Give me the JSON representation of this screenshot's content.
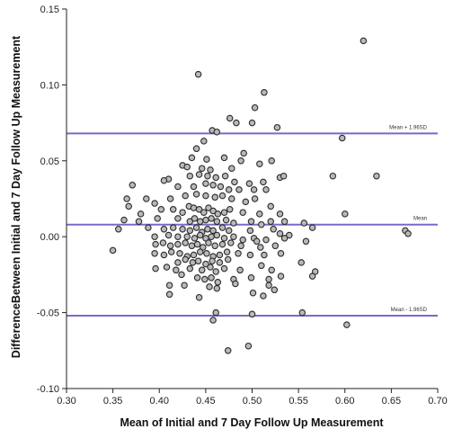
{
  "chart_data": {
    "type": "scatter",
    "title": "",
    "xlabel": "Mean of Initial and 7 Day Follow Up Measurement",
    "ylabel": "DifferenceBetween Initial and 7 Day Follow Up Measurement",
    "xlim": [
      0.3,
      0.7
    ],
    "ylim": [
      -0.1,
      0.15
    ],
    "x_ticks": [
      "0.30",
      "0.35",
      "0.40",
      "0.45",
      "0.50",
      "0.55",
      "0.60",
      "0.65",
      "0.70"
    ],
    "y_ticks": [
      "0.15",
      "0.10",
      "0.05",
      "0.00",
      "-0.05",
      "-0.10"
    ],
    "grid": false,
    "reference_lines": [
      {
        "label": "Mean + 1.96SD",
        "y": 0.068,
        "color": "#7b68c9"
      },
      {
        "label": "Mean",
        "y": 0.008,
        "color": "#7b68c9"
      },
      {
        "label": "Mean - 1.96SD",
        "y": -0.052,
        "color": "#7b68c9"
      }
    ],
    "point_style": {
      "fill": "#b9b9b9",
      "stroke": "#2a2a2a"
    },
    "points": [
      [
        0.62,
        0.129
      ],
      [
        0.442,
        0.107
      ],
      [
        0.513,
        0.095
      ],
      [
        0.503,
        0.085
      ],
      [
        0.476,
        0.078
      ],
      [
        0.483,
        0.075
      ],
      [
        0.5,
        0.075
      ],
      [
        0.457,
        0.07
      ],
      [
        0.462,
        0.069
      ],
      [
        0.527,
        0.072
      ],
      [
        0.597,
        0.065
      ],
      [
        0.448,
        0.063
      ],
      [
        0.44,
        0.058
      ],
      [
        0.435,
        0.052
      ],
      [
        0.451,
        0.051
      ],
      [
        0.47,
        0.052
      ],
      [
        0.491,
        0.055
      ],
      [
        0.508,
        0.048
      ],
      [
        0.425,
        0.047
      ],
      [
        0.43,
        0.046
      ],
      [
        0.446,
        0.045
      ],
      [
        0.455,
        0.044
      ],
      [
        0.478,
        0.045
      ],
      [
        0.488,
        0.05
      ],
      [
        0.521,
        0.05
      ],
      [
        0.587,
        0.04
      ],
      [
        0.634,
        0.04
      ],
      [
        0.41,
        0.038
      ],
      [
        0.433,
        0.04
      ],
      [
        0.443,
        0.041
      ],
      [
        0.452,
        0.04
      ],
      [
        0.461,
        0.039
      ],
      [
        0.471,
        0.04
      ],
      [
        0.481,
        0.036
      ],
      [
        0.497,
        0.035
      ],
      [
        0.512,
        0.036
      ],
      [
        0.53,
        0.039
      ],
      [
        0.534,
        0.04
      ],
      [
        0.371,
        0.034
      ],
      [
        0.405,
        0.037
      ],
      [
        0.42,
        0.033
      ],
      [
        0.437,
        0.033
      ],
      [
        0.45,
        0.035
      ],
      [
        0.458,
        0.034
      ],
      [
        0.466,
        0.033
      ],
      [
        0.475,
        0.031
      ],
      [
        0.486,
        0.031
      ],
      [
        0.502,
        0.031
      ],
      [
        0.515,
        0.031
      ],
      [
        0.365,
        0.025
      ],
      [
        0.367,
        0.02
      ],
      [
        0.386,
        0.025
      ],
      [
        0.395,
        0.022
      ],
      [
        0.412,
        0.025
      ],
      [
        0.428,
        0.027
      ],
      [
        0.44,
        0.028
      ],
      [
        0.45,
        0.027
      ],
      [
        0.46,
        0.026
      ],
      [
        0.468,
        0.027
      ],
      [
        0.478,
        0.025
      ],
      [
        0.493,
        0.023
      ],
      [
        0.503,
        0.025
      ],
      [
        0.52,
        0.02
      ],
      [
        0.38,
        0.015
      ],
      [
        0.402,
        0.018
      ],
      [
        0.415,
        0.018
      ],
      [
        0.425,
        0.016
      ],
      [
        0.432,
        0.02
      ],
      [
        0.437,
        0.019
      ],
      [
        0.443,
        0.018
      ],
      [
        0.448,
        0.016
      ],
      [
        0.453,
        0.019
      ],
      [
        0.458,
        0.017
      ],
      [
        0.463,
        0.015
      ],
      [
        0.47,
        0.016
      ],
      [
        0.476,
        0.018
      ],
      [
        0.49,
        0.016
      ],
      [
        0.508,
        0.015
      ],
      [
        0.53,
        0.015
      ],
      [
        0.6,
        0.015
      ],
      [
        0.362,
        0.011
      ],
      [
        0.378,
        0.01
      ],
      [
        0.398,
        0.012
      ],
      [
        0.42,
        0.012
      ],
      [
        0.433,
        0.01
      ],
      [
        0.438,
        0.012
      ],
      [
        0.444,
        0.01
      ],
      [
        0.45,
        0.011
      ],
      [
        0.456,
        0.012
      ],
      [
        0.462,
        0.01
      ],
      [
        0.472,
        0.011
      ],
      [
        0.48,
        0.009
      ],
      [
        0.499,
        0.01
      ],
      [
        0.51,
        0.008
      ],
      [
        0.52,
        0.01
      ],
      [
        0.535,
        0.01
      ],
      [
        0.556,
        0.009
      ],
      [
        0.565,
        0.006
      ],
      [
        0.665,
        0.004
      ],
      [
        0.668,
        0.002
      ],
      [
        0.356,
        0.005
      ],
      [
        0.388,
        0.006
      ],
      [
        0.405,
        0.005
      ],
      [
        0.415,
        0.006
      ],
      [
        0.425,
        0.005
      ],
      [
        0.433,
        0.004
      ],
      [
        0.44,
        0.006
      ],
      [
        0.446,
        0.003
      ],
      [
        0.452,
        0.005
      ],
      [
        0.458,
        0.004
      ],
      [
        0.468,
        0.006
      ],
      [
        0.475,
        0.004
      ],
      [
        0.498,
        0.004
      ],
      [
        0.523,
        0.005
      ],
      [
        0.53,
        0.002
      ],
      [
        0.54,
        0.001
      ],
      [
        0.395,
        0.0
      ],
      [
        0.41,
        0.001
      ],
      [
        0.42,
        0.0
      ],
      [
        0.43,
        0.0
      ],
      [
        0.438,
        -0.001
      ],
      [
        0.444,
        0.001
      ],
      [
        0.45,
        -0.001
      ],
      [
        0.456,
        0.0
      ],
      [
        0.462,
        0.001
      ],
      [
        0.47,
        -0.001
      ],
      [
        0.48,
        0.0
      ],
      [
        0.49,
        -0.002
      ],
      [
        0.502,
        -0.001
      ],
      [
        0.505,
        -0.003
      ],
      [
        0.515,
        -0.002
      ],
      [
        0.535,
        -0.001
      ],
      [
        0.558,
        -0.003
      ],
      [
        0.35,
        -0.009
      ],
      [
        0.396,
        -0.005
      ],
      [
        0.404,
        -0.004
      ],
      [
        0.412,
        -0.006
      ],
      [
        0.42,
        -0.005
      ],
      [
        0.428,
        -0.004
      ],
      [
        0.435,
        -0.006
      ],
      [
        0.441,
        -0.005
      ],
      [
        0.447,
        -0.007
      ],
      [
        0.453,
        -0.004
      ],
      [
        0.46,
        -0.006
      ],
      [
        0.468,
        -0.005
      ],
      [
        0.477,
        -0.004
      ],
      [
        0.488,
        -0.006
      ],
      [
        0.509,
        -0.007
      ],
      [
        0.525,
        -0.006
      ],
      [
        0.395,
        -0.011
      ],
      [
        0.405,
        -0.012
      ],
      [
        0.413,
        -0.01
      ],
      [
        0.422,
        -0.011
      ],
      [
        0.43,
        -0.013
      ],
      [
        0.437,
        -0.012
      ],
      [
        0.444,
        -0.01
      ],
      [
        0.451,
        -0.011
      ],
      [
        0.458,
        -0.013
      ],
      [
        0.465,
        -0.012
      ],
      [
        0.473,
        -0.01
      ],
      [
        0.485,
        -0.011
      ],
      [
        0.498,
        -0.012
      ],
      [
        0.513,
        -0.012
      ],
      [
        0.531,
        -0.011
      ],
      [
        0.42,
        -0.017
      ],
      [
        0.428,
        -0.015
      ],
      [
        0.436,
        -0.017
      ],
      [
        0.442,
        -0.016
      ],
      [
        0.45,
        -0.018
      ],
      [
        0.457,
        -0.016
      ],
      [
        0.465,
        -0.017
      ],
      [
        0.474,
        -0.015
      ],
      [
        0.553,
        -0.017
      ],
      [
        0.396,
        -0.021
      ],
      [
        0.408,
        -0.02
      ],
      [
        0.418,
        -0.022
      ],
      [
        0.433,
        -0.021
      ],
      [
        0.446,
        -0.022
      ],
      [
        0.455,
        -0.02
      ],
      [
        0.461,
        -0.023
      ],
      [
        0.47,
        -0.021
      ],
      [
        0.487,
        -0.022
      ],
      [
        0.51,
        -0.019
      ],
      [
        0.521,
        -0.022
      ],
      [
        0.568,
        -0.023
      ],
      [
        0.565,
        -0.026
      ],
      [
        0.424,
        -0.025
      ],
      [
        0.441,
        -0.027
      ],
      [
        0.449,
        -0.028
      ],
      [
        0.456,
        -0.027
      ],
      [
        0.463,
        -0.03
      ],
      [
        0.48,
        -0.028
      ],
      [
        0.499,
        -0.027
      ],
      [
        0.518,
        -0.028
      ],
      [
        0.531,
        -0.026
      ],
      [
        0.411,
        -0.032
      ],
      [
        0.427,
        -0.032
      ],
      [
        0.454,
        -0.033
      ],
      [
        0.462,
        -0.034
      ],
      [
        0.482,
        -0.031
      ],
      [
        0.518,
        -0.032
      ],
      [
        0.524,
        -0.035
      ],
      [
        0.411,
        -0.038
      ],
      [
        0.443,
        -0.04
      ],
      [
        0.501,
        -0.037
      ],
      [
        0.512,
        -0.039
      ],
      [
        0.461,
        -0.05
      ],
      [
        0.458,
        -0.055
      ],
      [
        0.5,
        -0.051
      ],
      [
        0.554,
        -0.05
      ],
      [
        0.602,
        -0.058
      ],
      [
        0.474,
        -0.075
      ],
      [
        0.496,
        -0.072
      ]
    ]
  }
}
